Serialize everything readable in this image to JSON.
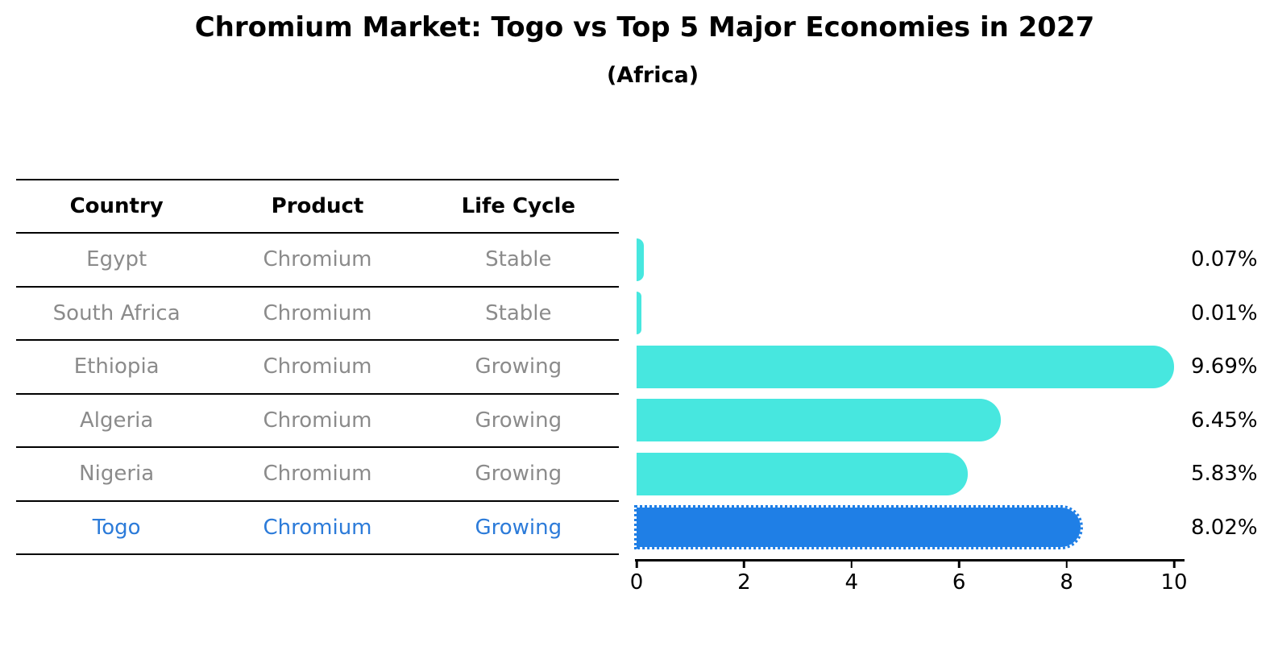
{
  "title": "Chromium Market: Togo vs Top 5 Major Economies in 2027",
  "subtitle": "(Africa)",
  "table": {
    "headers": [
      "Country",
      "Product",
      "Life Cycle"
    ],
    "rows": [
      {
        "country": "Egypt",
        "product": "Chromium",
        "life_cycle": "Stable"
      },
      {
        "country": "South Africa",
        "product": "Chromium",
        "life_cycle": "Stable"
      },
      {
        "country": "Ethiopia",
        "product": "Chromium",
        "life_cycle": "Growing"
      },
      {
        "country": "Algeria",
        "product": "Chromium",
        "life_cycle": "Growing"
      },
      {
        "country": "Nigeria",
        "product": "Chromium",
        "life_cycle": "Growing"
      },
      {
        "country": "Togo",
        "product": "Chromium",
        "life_cycle": "Growing"
      }
    ],
    "highlight_row": "Togo"
  },
  "chart_data": {
    "type": "bar",
    "orientation": "horizontal",
    "categories": [
      "Egypt",
      "South Africa",
      "Ethiopia",
      "Algeria",
      "Nigeria",
      "Togo"
    ],
    "values": [
      0.07,
      0.01,
      9.69,
      6.45,
      5.83,
      8.02
    ],
    "value_labels": [
      "0.07%",
      "0.01%",
      "9.69%",
      "6.45%",
      "5.83%",
      "8.02%"
    ],
    "xlim": [
      0,
      10
    ],
    "x_ticks": [
      "0",
      "2",
      "4",
      "6",
      "8",
      "10"
    ],
    "grid": false,
    "legend": false,
    "bar_color": "#47E7DF",
    "highlight_color": "#1F7FE6",
    "highlight_index": 5,
    "highlight_text_color": "#2C7BD9",
    "cell_text_color": "#8B8B8B"
  }
}
